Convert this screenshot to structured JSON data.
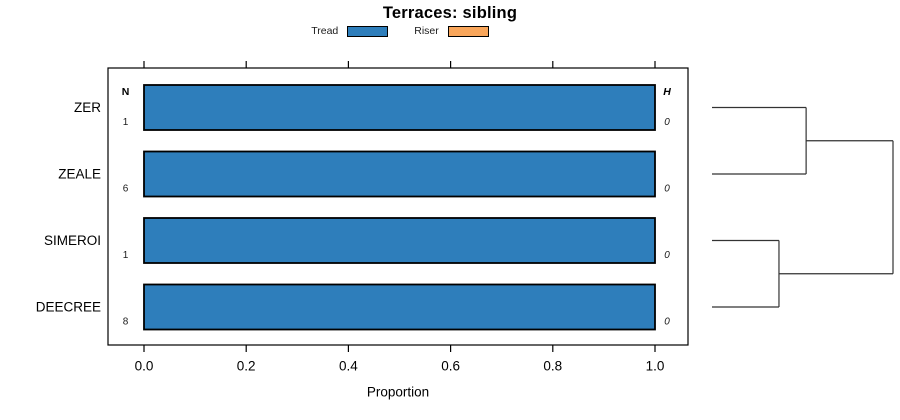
{
  "figure": {
    "title": "Terraces: sibling",
    "xlabel": "Proportion"
  },
  "legend": {
    "items": [
      {
        "label": "Tread",
        "color": "#2E7EBB"
      },
      {
        "label": "Riser",
        "color": "#F9A65B"
      }
    ]
  },
  "chart_data": {
    "type": "bar",
    "orientation": "horizontal",
    "title": "Terraces: sibling",
    "xlabel": "Proportion",
    "xlim": [
      0,
      1
    ],
    "xticks": [
      "0.0",
      "0.2",
      "0.4",
      "0.6",
      "0.8",
      "1.0"
    ],
    "categories": [
      "ZER",
      "ZEALE",
      "SIMEROI",
      "DEECREE"
    ],
    "series": [
      {
        "name": "Tread",
        "color": "#2E7EBB",
        "values": [
          1.0,
          1.0,
          1.0,
          1.0
        ]
      },
      {
        "name": "Riser",
        "color": "#F9A65B",
        "values": [
          0.0,
          0.0,
          0.0,
          0.0
        ]
      }
    ],
    "left_annotation": {
      "header": "N",
      "values": [
        "1",
        "6",
        "1",
        "8"
      ]
    },
    "right_annotation": {
      "header": "H",
      "values": [
        "0",
        "0",
        "0",
        "0"
      ]
    },
    "legend_position": "top-center",
    "grid": false,
    "dendrogram": {
      "side": "right",
      "merges": [
        {
          "a": 0,
          "b": 1,
          "height": 0.52
        },
        {
          "a": 2,
          "b": 3,
          "height": 0.37
        },
        {
          "a": "m0",
          "b": "m1",
          "height": 1.0
        }
      ]
    }
  },
  "colors": {
    "bar_fill": "#2E7EBB",
    "bar_border": "#000000",
    "axis": "#000000",
    "text": "#000000",
    "dendrogram_line": "#333333",
    "background": "#FFFFFF"
  }
}
